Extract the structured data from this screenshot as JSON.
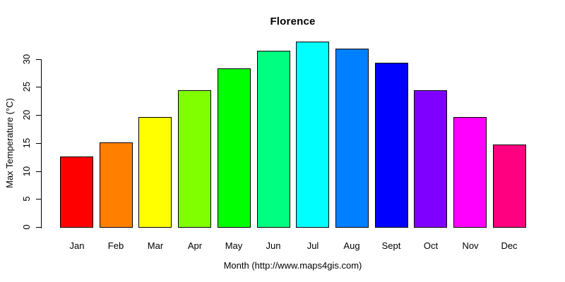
{
  "chart_data": {
    "type": "bar",
    "title": "Florence",
    "xlabel": "Month (http://www.maps4gis.com)",
    "ylabel": "Max Temperature (°C)",
    "categories": [
      "Jan",
      "Feb",
      "Mar",
      "Apr",
      "May",
      "Jun",
      "Jul",
      "Aug",
      "Sept",
      "Oct",
      "Nov",
      "Dec"
    ],
    "values": [
      12.6,
      15.1,
      19.6,
      24.4,
      28.3,
      31.4,
      33.1,
      31.8,
      29.3,
      24.4,
      19.6,
      14.7
    ],
    "bar_colors": [
      "#FF0000",
      "#FF8000",
      "#FFFF00",
      "#80FF00",
      "#00FF00",
      "#00FF80",
      "#00FFFF",
      "#0080FF",
      "#0000FF",
      "#8000FF",
      "#FF00FF",
      "#FF0080"
    ],
    "bar_border_color": "#000000",
    "yticks": [
      0,
      5,
      10,
      15,
      20,
      25,
      30
    ],
    "ylim": [
      0,
      33.5
    ],
    "grid": false,
    "legend_position": "none",
    "background_color": "#FFFFFF",
    "text_color": "#000000"
  }
}
